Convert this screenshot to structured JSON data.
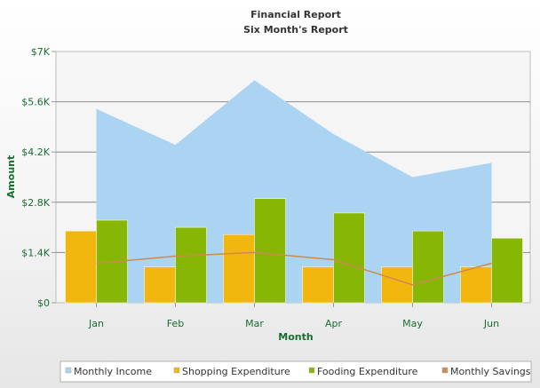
{
  "chart_data": {
    "type": "bar",
    "title": "Financial Report",
    "subtitle": "Six Month's Report",
    "xlabel": "Month",
    "ylabel": "Amount",
    "categories": [
      "Jan",
      "Feb",
      "Mar",
      "Apr",
      "May",
      "Jun"
    ],
    "ylim": [
      0,
      7000
    ],
    "y_ticks": [
      {
        "value": 0,
        "label": "$0"
      },
      {
        "value": 1400,
        "label": "$1.4K"
      },
      {
        "value": 2800,
        "label": "$2.8K"
      },
      {
        "value": 4200,
        "label": "$4.2K"
      },
      {
        "value": 5600,
        "label": "$5.6K"
      },
      {
        "value": 7000,
        "label": "$7K"
      }
    ],
    "grid": true,
    "legend_position": "bottom",
    "series": [
      {
        "name": "Monthly Income",
        "render": "area",
        "color": "#abd4f3",
        "values": [
          5400,
          4400,
          6200,
          4700,
          3500,
          3900
        ]
      },
      {
        "name": "Shopping Expenditure",
        "render": "bar",
        "color": "#f2b70f",
        "values": [
          2000,
          1000,
          1900,
          1000,
          1000,
          1000
        ]
      },
      {
        "name": "Fooding Expenditure",
        "render": "bar",
        "color": "#88b605",
        "values": [
          2300,
          2100,
          2900,
          2500,
          2000,
          1800
        ]
      },
      {
        "name": "Monthly Savings",
        "render": "line",
        "color": "#cc8a52",
        "values": [
          1100,
          1300,
          1400,
          1200,
          500,
          1100
        ]
      }
    ]
  }
}
